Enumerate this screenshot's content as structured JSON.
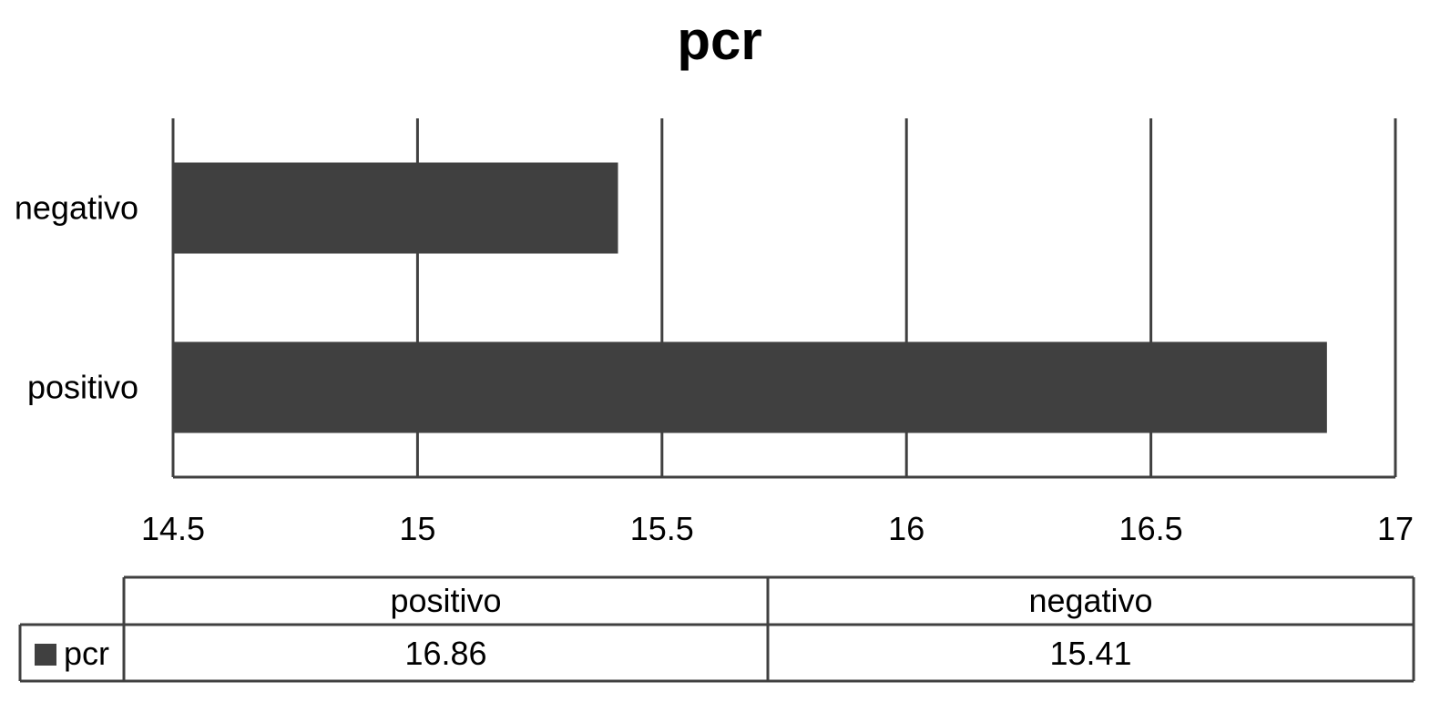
{
  "chart_data": {
    "type": "bar",
    "orientation": "horizontal",
    "title": "pcr",
    "xlabel": "",
    "ylabel": "",
    "categories": [
      "positivo",
      "negativo"
    ],
    "series": [
      {
        "name": "pcr",
        "values": [
          16.86,
          15.41
        ],
        "value_labels": [
          "16.86",
          "15.41"
        ],
        "color": "#404040"
      }
    ],
    "xlim": [
      14.5,
      17
    ],
    "x_ticks": [
      14.5,
      15,
      15.5,
      16,
      16.5,
      17
    ],
    "x_tick_labels": [
      "14.5",
      "15",
      "15.5",
      "16",
      "16.5",
      "17"
    ],
    "grid": true,
    "legend": "data-table-below",
    "data_table": true
  }
}
